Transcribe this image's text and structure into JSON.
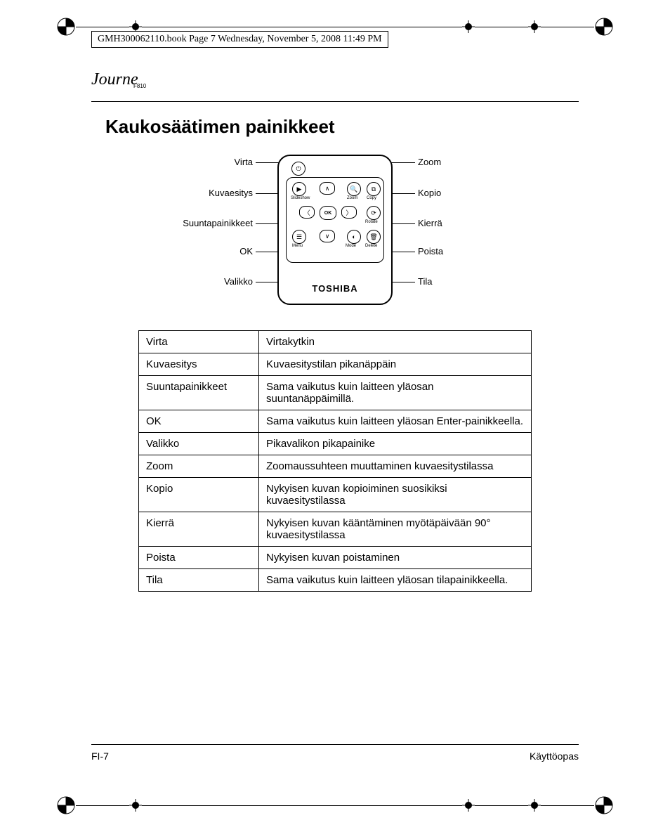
{
  "header": {
    "running_head": "GMH300062110.book  Page 7  Wednesday, November 5, 2008  11:49 PM"
  },
  "logo": {
    "script": "Journe",
    "model": "F810"
  },
  "section_title": "Kaukosäätimen painikkeet",
  "remote": {
    "brand": "TOSHIBA",
    "button_labels": {
      "slideshow": "Slideshow",
      "zoom": "Zoom",
      "copy": "Copy",
      "rotate": "Rotate",
      "menu": "Menu",
      "mode": "Mode",
      "delete": "Delete",
      "ok": "OK"
    }
  },
  "callouts": {
    "left": [
      {
        "label": "Virta"
      },
      {
        "label": "Kuvaesitys"
      },
      {
        "label": "Suuntapainikkeet"
      },
      {
        "label": "OK"
      },
      {
        "label": "Valikko"
      }
    ],
    "right": [
      {
        "label": "Zoom"
      },
      {
        "label": "Kopio"
      },
      {
        "label": "Kierrä"
      },
      {
        "label": "Poista"
      },
      {
        "label": "Tila"
      }
    ]
  },
  "table": {
    "rows": [
      {
        "term": "Virta",
        "desc": "Virtakytkin"
      },
      {
        "term": "Kuvaesitys",
        "desc": "Kuvaesitystilan pikanäppäin"
      },
      {
        "term": "Suuntapainikkeet",
        "desc": "Sama vaikutus kuin laitteen yläosan suuntanäppäimillä."
      },
      {
        "term": "OK",
        "desc": "Sama vaikutus kuin laitteen yläosan Enter-painikkeella."
      },
      {
        "term": "Valikko",
        "desc": "Pikavalikon pikapainike"
      },
      {
        "term": "Zoom",
        "desc": "Zoomaussuhteen muuttaminen kuvaesitystilassa"
      },
      {
        "term": "Kopio",
        "desc": "Nykyisen kuvan kopioiminen suosikiksi kuvaesitystilassa"
      },
      {
        "term": "Kierrä",
        "desc": "Nykyisen kuvan kääntäminen myötäpäivään 90° kuvaesitystilassa"
      },
      {
        "term": "Poista",
        "desc": "Nykyisen kuvan poistaminen"
      },
      {
        "term": "Tila",
        "desc": "Sama vaikutus kuin laitteen yläosan tilapainikkeella."
      }
    ]
  },
  "footer": {
    "left": "FI-7",
    "right": "Käyttöopas"
  },
  "colors": {
    "text": "#000000",
    "background": "#ffffff",
    "line": "#000000"
  }
}
